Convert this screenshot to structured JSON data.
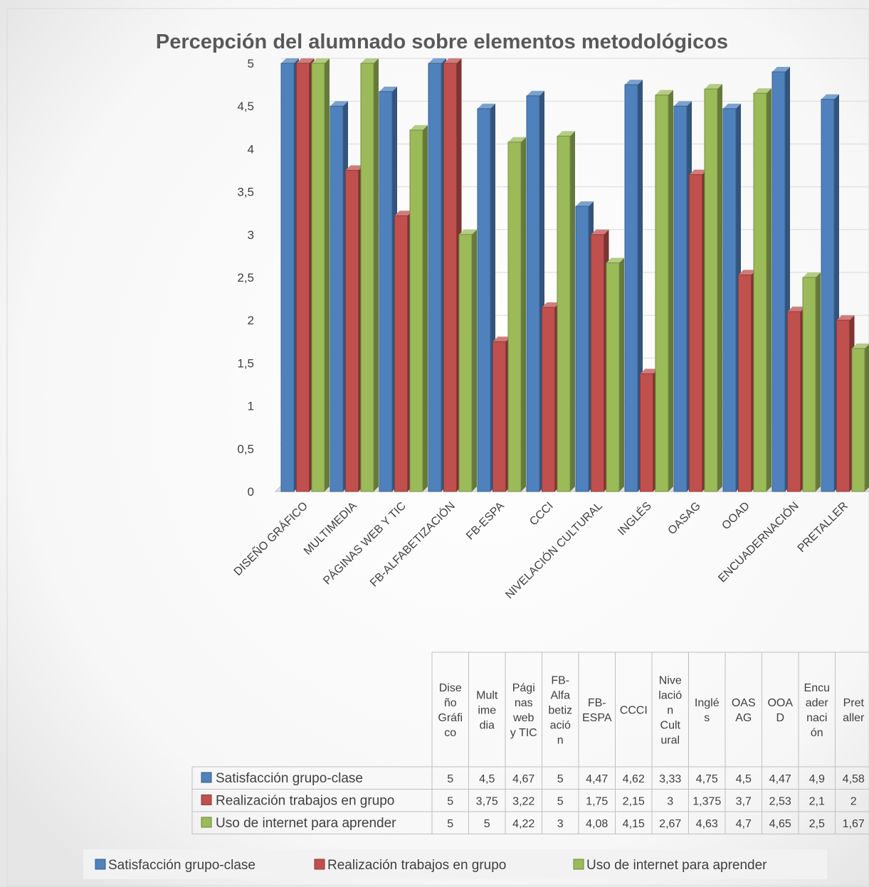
{
  "chart_data": {
    "type": "bar",
    "title": "Percepción del alumnado sobre elementos metodológicos",
    "ylim": [
      0,
      5
    ],
    "yticks": [
      "0",
      "0,5",
      "1",
      "1,5",
      "2",
      "2,5",
      "3",
      "3,5",
      "4",
      "4,5",
      "5"
    ],
    "categories": [
      "DISEÑO GRÁFICO",
      "MULTIMEDIA",
      "PÁGINAS WEB Y TIC",
      "FB-ALFABETIZACIÓN",
      "FB-ESPA",
      "CCCI",
      "NIVELACIÓN CULTURAL",
      "INGLÉS",
      "OASAG",
      "OOAD",
      "ENCUADERNACIÓN",
      "PRETALLER"
    ],
    "table_headers": [
      [
        "Dise",
        "ño",
        "Gráfi",
        "co"
      ],
      [
        "Mult",
        "ime",
        "dia"
      ],
      [
        "Pági",
        "nas",
        "web",
        "y TIC"
      ],
      [
        "FB-",
        "Alfa",
        "betiz",
        "ació",
        "n"
      ],
      [
        "FB-",
        "ESPA"
      ],
      [
        "CCCI"
      ],
      [
        "Nive",
        "lació",
        "n",
        "Cult",
        "ural"
      ],
      [
        "Inglé",
        "s"
      ],
      [
        "OAS",
        "AG"
      ],
      [
        "OOA",
        "D"
      ],
      [
        "Encu",
        "ader",
        "naci",
        "ón"
      ],
      [
        "Pret",
        "aller"
      ]
    ],
    "series": [
      {
        "name": "Satisfacción grupo-clase",
        "color": "#4f81bd",
        "values": [
          5,
          4.5,
          4.67,
          5,
          4.47,
          4.62,
          3.33,
          4.75,
          4.5,
          4.47,
          4.9,
          4.58
        ],
        "labels": [
          "5",
          "4,5",
          "4,67",
          "5",
          "4,47",
          "4,62",
          "3,33",
          "4,75",
          "4,5",
          "4,47",
          "4,9",
          "4,58"
        ]
      },
      {
        "name": "Realización trabajos en grupo",
        "color": "#c0504d",
        "values": [
          5,
          3.75,
          3.22,
          5,
          1.75,
          2.15,
          3,
          1.375,
          3.7,
          2.53,
          2.1,
          2
        ],
        "labels": [
          "5",
          "3,75",
          "3,22",
          "5",
          "1,75",
          "2,15",
          "3",
          "1,375",
          "3,7",
          "2,53",
          "2,1",
          "2"
        ]
      },
      {
        "name": "Uso de internet para aprender",
        "color": "#9bbb59",
        "values": [
          5,
          5,
          4.22,
          3,
          4.08,
          4.15,
          2.67,
          4.63,
          4.7,
          4.65,
          2.5,
          1.67
        ],
        "labels": [
          "5",
          "5",
          "4,22",
          "3",
          "4,08",
          "4,15",
          "2,67",
          "4,63",
          "4,7",
          "4,65",
          "2,5",
          "1,67"
        ]
      }
    ],
    "legend_position": "bottom",
    "data_table": true,
    "grid": true
  }
}
